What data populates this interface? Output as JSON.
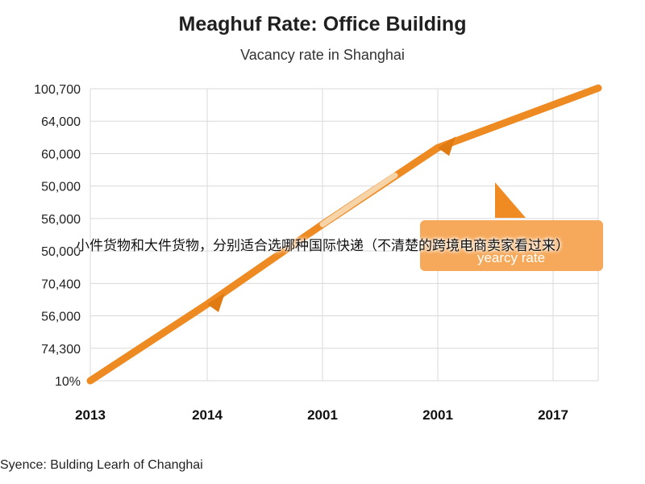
{
  "chart_data": {
    "type": "line",
    "title": "Meaghuf Rate: Office Building",
    "subtitle": "Vacancy rate in Shanghai",
    "y_tick_labels": [
      "100,700",
      "64,000",
      "60,000",
      "50,000",
      "56,000",
      "50,000",
      "70,400",
      "56,000",
      "74,300",
      "10%"
    ],
    "categories": [
      "2013",
      "2014",
      "2001",
      "2001",
      "2017"
    ],
    "series": [
      {
        "values": [
          0,
          2.5,
          5.1,
          7.6,
          9.0
        ]
      }
    ],
    "ylim": [
      0,
      9
    ],
    "grid": true,
    "annotation": {
      "text": "yearcy rate"
    },
    "colors": {
      "line": "#ee8a22",
      "line_highlight": "#f7d3a8",
      "annotation_box": "#f6a95a",
      "grid": "#d9d9d9"
    }
  },
  "overlay_text": "小件货物和大件货物，分别适合选哪种国际快递（不清楚的跨境电商卖家看过来）",
  "source": "Syence: Bulding Learh of Changhai"
}
